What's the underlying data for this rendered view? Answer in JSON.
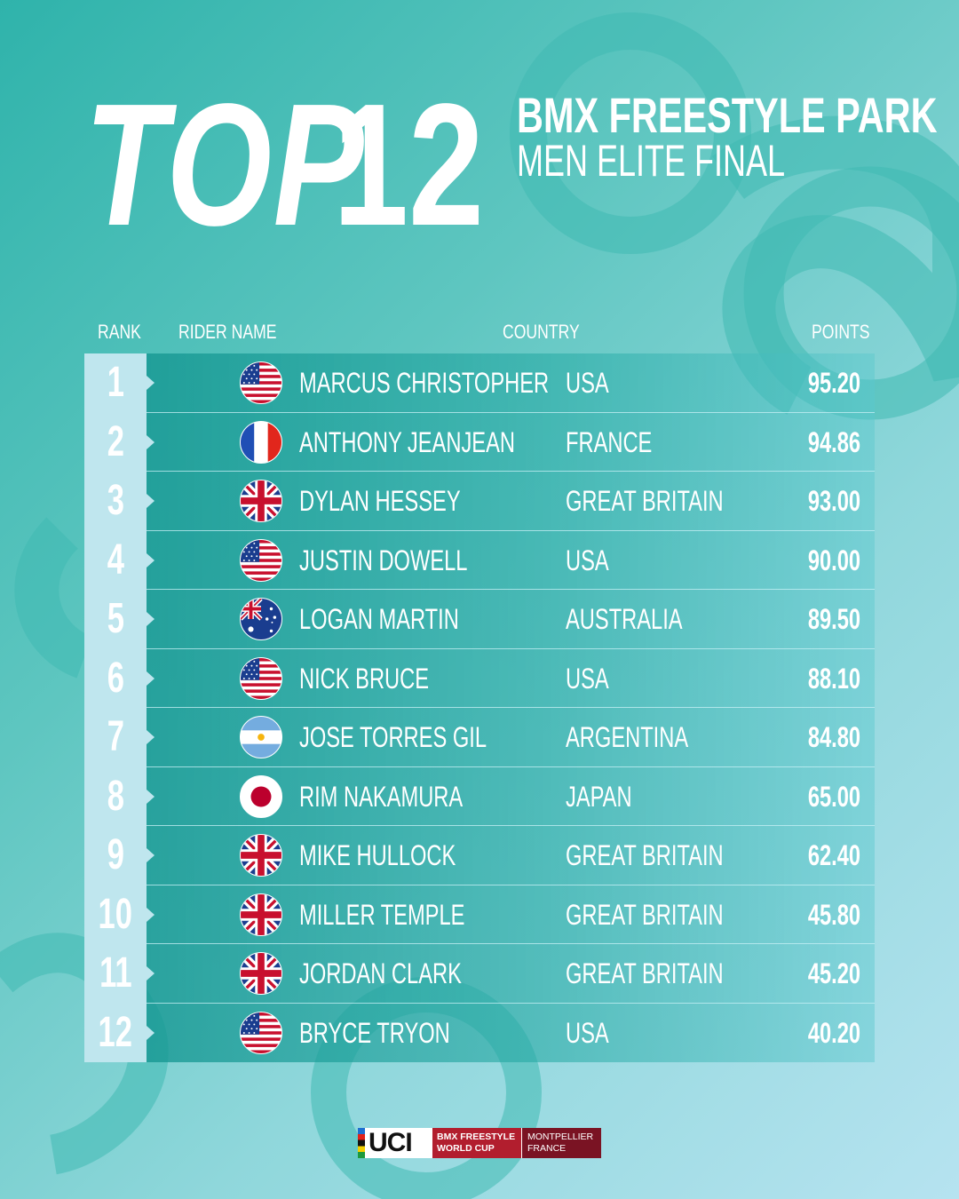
{
  "title": {
    "top": "TOP",
    "number": "12"
  },
  "subtitle": {
    "line1": "BMX FREESTYLE PARK",
    "line2": "MEN ELITE FINAL"
  },
  "headers": {
    "rank": "RANK",
    "rider": "RIDER NAME",
    "country": "COUNTRY",
    "points": "POINTS"
  },
  "rows": [
    {
      "rank": "1",
      "flag": "usa-flag-icon",
      "name": "MARCUS CHRISTOPHER",
      "country": "USA",
      "points": "95.20"
    },
    {
      "rank": "2",
      "flag": "france-flag-icon",
      "name": "ANTHONY JEANJEAN",
      "country": "FRANCE",
      "points": "94.86"
    },
    {
      "rank": "3",
      "flag": "great-britain-flag-icon",
      "name": "DYLAN HESSEY",
      "country": "GREAT BRITAIN",
      "points": "93.00"
    },
    {
      "rank": "4",
      "flag": "usa-flag-icon",
      "name": "JUSTIN DOWELL",
      "country": "USA",
      "points": "90.00"
    },
    {
      "rank": "5",
      "flag": "australia-flag-icon",
      "name": "LOGAN MARTIN",
      "country": "AUSTRALIA",
      "points": "89.50"
    },
    {
      "rank": "6",
      "flag": "usa-flag-icon",
      "name": "NICK BRUCE",
      "country": "USA",
      "points": "88.10"
    },
    {
      "rank": "7",
      "flag": "argentina-flag-icon",
      "name": "JOSE TORRES GIL",
      "country": "ARGENTINA",
      "points": "84.80"
    },
    {
      "rank": "8",
      "flag": "japan-flag-icon",
      "name": "RIM NAKAMURA",
      "country": "JAPAN",
      "points": "65.00"
    },
    {
      "rank": "9",
      "flag": "great-britain-flag-icon",
      "name": "MIKE HULLOCK",
      "country": "GREAT BRITAIN",
      "points": "62.40"
    },
    {
      "rank": "10",
      "flag": "great-britain-flag-icon",
      "name": "MILLER TEMPLE",
      "country": "GREAT BRITAIN",
      "points": "45.80"
    },
    {
      "rank": "11",
      "flag": "great-britain-flag-icon",
      "name": "JORDAN CLARK",
      "country": "GREAT BRITAIN",
      "points": "45.20"
    },
    {
      "rank": "12",
      "flag": "usa-flag-icon",
      "name": "BRYCE TRYON",
      "country": "USA",
      "points": "40.20"
    }
  ],
  "logo": {
    "brand": "UCI",
    "event_line1": "BMX FREESTYLE",
    "event_line2": "WORLD CUP",
    "location_line1": "MONTPELLIER",
    "location_line2": "FRANCE"
  },
  "colors": {
    "background_start": "#2fb3ab",
    "background_end": "#b6e3f0",
    "rank_column": "#bfe6ee",
    "logo_red": "#b21e2e",
    "logo_dark_red": "#7a1323"
  }
}
